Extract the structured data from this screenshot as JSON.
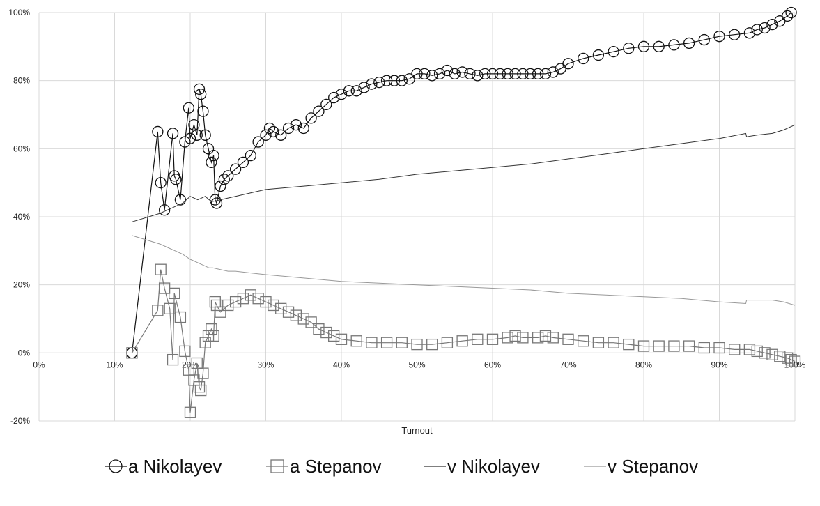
{
  "chart_data": {
    "type": "line",
    "title": "",
    "xlabel": "Turnout",
    "ylabel": "",
    "xlim": [
      0,
      100
    ],
    "ylim": [
      -20,
      100
    ],
    "x_ticks": [
      "0%",
      "10%",
      "20%",
      "30%",
      "40%",
      "50%",
      "60%",
      "70%",
      "80%",
      "90%",
      "100%"
    ],
    "y_ticks": [
      "-20%",
      "0%",
      "20%",
      "40%",
      "60%",
      "80%",
      "100%"
    ],
    "grid": true,
    "legend_position": "bottom",
    "series": [
      {
        "name": "a Nikolayev",
        "marker": "circle",
        "color": "#111111",
        "x": [
          12.3,
          15.7,
          16.1,
          16.6,
          17.7,
          17.9,
          18.1,
          18.7,
          19.3,
          19.8,
          20.0,
          20.5,
          20.9,
          21.2,
          21.4,
          21.7,
          22.0,
          22.4,
          22.8,
          23.1,
          23.3,
          23.5,
          24.0,
          24.5,
          25.0,
          26.0,
          27.0,
          28.0,
          29.0,
          30.0,
          30.5,
          31.0,
          32.0,
          33.0,
          34.0,
          35.0,
          36.0,
          37.0,
          38.0,
          39.0,
          40.0,
          41.0,
          42.0,
          43.0,
          44.0,
          45.0,
          46.0,
          47.0,
          48.0,
          49.0,
          50.0,
          51.0,
          52.0,
          53.0,
          54.0,
          55.0,
          56.0,
          57.0,
          58.0,
          59.0,
          60.0,
          61.0,
          62.0,
          63.0,
          64.0,
          65.0,
          66.0,
          67.0,
          68.0,
          69.0,
          70.0,
          72.0,
          74.0,
          76.0,
          78.0,
          80.0,
          82.0,
          84.0,
          86.0,
          88.0,
          90.0,
          92.0,
          94.0,
          95.0,
          96.0,
          97.0,
          98.0,
          99.0,
          99.5
        ],
        "values": [
          0,
          65,
          50,
          42,
          64.5,
          52,
          51,
          45,
          62,
          72,
          63,
          67,
          64,
          77.5,
          76,
          71,
          64,
          60,
          56,
          58,
          45,
          44,
          49,
          51,
          52,
          54,
          56,
          58,
          62,
          64,
          66,
          65,
          64,
          66,
          67,
          66,
          69,
          71,
          73,
          75,
          76,
          77,
          77,
          78,
          79,
          79.5,
          80,
          80,
          80,
          80.5,
          82,
          82,
          81.5,
          82,
          83,
          82,
          82.5,
          82,
          81.5,
          82,
          82,
          82,
          82,
          82,
          82,
          82,
          82,
          82,
          82.5,
          83.5,
          85,
          86.5,
          87.5,
          88.5,
          89.5,
          90,
          90,
          90.5,
          91,
          92,
          93,
          93.5,
          94,
          95,
          95.5,
          96.5,
          97.5,
          99,
          100
        ]
      },
      {
        "name": "a Stepanov",
        "marker": "square",
        "color": "#777777",
        "x": [
          12.3,
          15.7,
          16.1,
          16.6,
          17.3,
          17.7,
          17.9,
          18.7,
          19.3,
          19.8,
          20.0,
          20.5,
          20.9,
          21.2,
          21.4,
          21.7,
          22.0,
          22.4,
          22.8,
          23.1,
          23.3,
          23.5,
          24.0,
          25.0,
          26.0,
          27.0,
          28.0,
          29.0,
          30.0,
          31.0,
          32.0,
          33.0,
          34.0,
          35.0,
          36.0,
          37.0,
          38.0,
          39.0,
          40.0,
          42.0,
          44.0,
          46.0,
          48.0,
          50.0,
          52.0,
          54.0,
          56.0,
          58.0,
          60.0,
          62.0,
          63.0,
          64.0,
          66.0,
          67.0,
          68.0,
          70.0,
          72.0,
          74.0,
          76.0,
          78.0,
          80.0,
          82.0,
          84.0,
          86.0,
          88.0,
          90.0,
          92.0,
          94.0,
          95.0,
          96.0,
          97.0,
          98.0,
          99.0,
          99.5,
          100.0
        ],
        "values": [
          0,
          12.5,
          24.5,
          19,
          13,
          -2,
          17.5,
          10.5,
          0.5,
          -5,
          -17.5,
          -8,
          -3,
          -10,
          -11,
          -6,
          3,
          5,
          7,
          5,
          15,
          14,
          12,
          14,
          15,
          16,
          17,
          16,
          15,
          14,
          13,
          12,
          11,
          10,
          9,
          7,
          6,
          5,
          4,
          3.5,
          3,
          3,
          3,
          2.5,
          2.5,
          3,
          3.5,
          4,
          4,
          4.5,
          5,
          4.5,
          4.5,
          5,
          4.5,
          4,
          3.5,
          3,
          3,
          2.5,
          2,
          2,
          2,
          2,
          1.5,
          1.5,
          1,
          1,
          0.5,
          0,
          -0.5,
          -1,
          -1.5,
          -2,
          -2.5
        ]
      },
      {
        "name": "v Nikolayev",
        "marker": "none",
        "color": "#333333",
        "x": [
          12.3,
          16.0,
          17.0,
          18.0,
          19.0,
          20.0,
          21.0,
          22.0,
          22.5,
          23.0,
          24.0,
          25.0,
          26.0,
          28.0,
          30.0,
          35.0,
          40.0,
          45.0,
          50.0,
          55.0,
          60.0,
          65.0,
          70.0,
          75.0,
          80.0,
          85.0,
          90.0,
          93.5,
          93.6,
          95.0,
          97.0,
          98.5,
          100.0
        ],
        "values": [
          38.5,
          41,
          42,
          43,
          44,
          46,
          45,
          46,
          45,
          44.5,
          45,
          45.5,
          46,
          47,
          48,
          49,
          50,
          51,
          52.5,
          53.5,
          54.5,
          55.5,
          57,
          58.5,
          60,
          61.5,
          63,
          64.5,
          63.5,
          64,
          64.5,
          65.5,
          67
        ]
      },
      {
        "name": "v Stepanov",
        "marker": "none",
        "color": "#999999",
        "x": [
          12.3,
          16.0,
          17.0,
          18.0,
          19.0,
          20.0,
          21.0,
          22.0,
          22.5,
          23.0,
          24.0,
          25.0,
          26.0,
          28.0,
          30.0,
          35.0,
          40.0,
          45.0,
          50.0,
          55.0,
          60.0,
          65.0,
          70.0,
          75.0,
          80.0,
          85.0,
          90.0,
          93.5,
          93.6,
          95.0,
          97.0,
          98.5,
          100.0
        ],
        "values": [
          34.5,
          32,
          31,
          30,
          29,
          27.5,
          26.5,
          25.5,
          25,
          25,
          24.5,
          24,
          24,
          23.5,
          23,
          22,
          21,
          20.5,
          20,
          19.5,
          19,
          18.5,
          17.5,
          17,
          16.5,
          16,
          15,
          14.5,
          15.5,
          15.5,
          15.5,
          15,
          14
        ]
      }
    ]
  }
}
